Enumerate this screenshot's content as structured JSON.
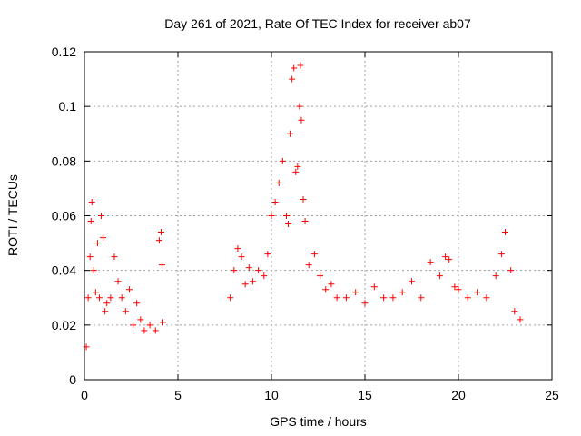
{
  "chart_data": {
    "type": "scatter",
    "title": "Day 261 of 2021, Rate Of TEC Index for receiver ab07",
    "xlabel": "GPS time / hours",
    "ylabel": "ROTI / TECUs",
    "xlim": [
      0,
      25
    ],
    "ylim": [
      0,
      0.12
    ],
    "xticks": [
      0,
      5,
      10,
      15,
      20,
      25
    ],
    "yticks": [
      0,
      0.02,
      0.04,
      0.06,
      0.08,
      0.1,
      0.12
    ],
    "grid": true,
    "marker": "+",
    "marker_color": "#ff0000",
    "x": [
      0.1,
      0.2,
      0.3,
      0.35,
      0.4,
      0.5,
      0.6,
      0.7,
      0.8,
      0.9,
      1.0,
      1.1,
      1.2,
      1.4,
      1.6,
      1.8,
      2.0,
      2.2,
      2.4,
      2.6,
      2.8,
      3.0,
      3.2,
      3.5,
      3.8,
      4.0,
      4.1,
      4.15,
      4.2,
      7.8,
      8.0,
      8.2,
      8.4,
      8.6,
      8.8,
      9.0,
      9.3,
      9.6,
      9.8,
      10.0,
      10.2,
      10.4,
      10.6,
      10.8,
      10.9,
      11.0,
      11.1,
      11.2,
      11.3,
      11.4,
      11.5,
      11.55,
      11.6,
      11.7,
      11.8,
      12.0,
      12.3,
      12.6,
      12.9,
      13.2,
      13.5,
      14.0,
      14.5,
      15.0,
      15.5,
      16.0,
      16.5,
      17.0,
      17.5,
      18.0,
      18.5,
      19.0,
      19.3,
      19.5,
      19.8,
      20.0,
      20.5,
      21.0,
      21.5,
      22.0,
      22.3,
      22.5,
      22.8,
      23.0,
      23.3
    ],
    "y": [
      0.012,
      0.03,
      0.045,
      0.058,
      0.065,
      0.04,
      0.032,
      0.05,
      0.03,
      0.06,
      0.052,
      0.025,
      0.028,
      0.03,
      0.045,
      0.036,
      0.03,
      0.025,
      0.033,
      0.02,
      0.028,
      0.022,
      0.018,
      0.02,
      0.018,
      0.051,
      0.054,
      0.042,
      0.021,
      0.03,
      0.04,
      0.048,
      0.045,
      0.035,
      0.041,
      0.036,
      0.04,
      0.038,
      0.046,
      0.06,
      0.065,
      0.072,
      0.08,
      0.06,
      0.057,
      0.09,
      0.11,
      0.114,
      0.076,
      0.078,
      0.1,
      0.115,
      0.095,
      0.066,
      0.058,
      0.042,
      0.046,
      0.038,
      0.033,
      0.035,
      0.03,
      0.03,
      0.032,
      0.028,
      0.034,
      0.03,
      0.03,
      0.032,
      0.036,
      0.03,
      0.043,
      0.038,
      0.045,
      0.044,
      0.034,
      0.033,
      0.03,
      0.032,
      0.03,
      0.038,
      0.046,
      0.054,
      0.04,
      0.025,
      0.022
    ]
  }
}
